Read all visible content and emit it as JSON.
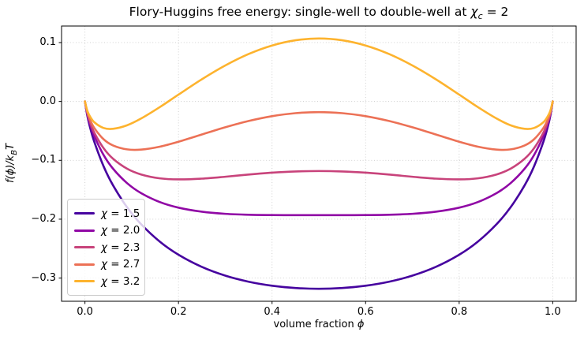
{
  "chart_data": {
    "type": "line",
    "title_parts": {
      "prefix": "Flory-Huggins free energy: single-well to double-well at ",
      "chi": "χ",
      "chi_sub": "c",
      "suffix": " = 2"
    },
    "xlabel_parts": {
      "text": "volume fraction ",
      "phi": "ϕ"
    },
    "ylabel_parts": {
      "pre": "f(ϕ)/k",
      "sub": "B",
      "post": "T"
    },
    "legend": {
      "symbol": "χ",
      "equals": " = ",
      "position": "lower left"
    },
    "grid": true,
    "grid_style": "dotted",
    "xlim": [
      -0.05,
      1.05
    ],
    "ylim": [
      -0.3394,
      0.1281
    ],
    "xticks": {
      "values": [
        0.0,
        0.2,
        0.4,
        0.6,
        0.8,
        1.0
      ],
      "labels": [
        "0.0",
        "0.2",
        "0.4",
        "0.6",
        "0.8",
        "1.0"
      ]
    },
    "yticks": {
      "values": [
        0.1,
        0.0,
        -0.1,
        -0.2,
        -0.3
      ],
      "labels": [
        "0.1",
        "0.0",
        "−0.1",
        "−0.2",
        "−0.3"
      ]
    },
    "x": [
      0,
      0.005,
      0.01,
      0.02,
      0.04,
      0.06,
      0.09,
      0.12,
      0.16,
      0.2,
      0.25,
      0.3,
      0.35,
      0.4,
      0.45,
      0.5,
      0.55,
      0.6,
      0.65,
      0.7,
      0.75,
      0.8,
      0.84,
      0.88,
      0.91,
      0.94,
      0.96,
      0.98,
      0.99,
      0.995,
      1.0
    ],
    "series": [
      {
        "chi": "1.5",
        "color": "#46039f",
        "values": [
          0,
          -0.024,
          -0.0412,
          -0.0686,
          -0.1104,
          -0.1424,
          -0.1797,
          -0.2085,
          -0.2381,
          -0.2604,
          -0.2811,
          -0.2959,
          -0.3062,
          -0.313,
          -0.3169,
          -0.3182,
          -0.3169,
          -0.313,
          -0.3062,
          -0.2959,
          -0.2811,
          -0.2604,
          -0.2381,
          -0.2085,
          -0.1797,
          -0.1424,
          -0.1104,
          -0.0686,
          -0.0412,
          -0.024,
          0
        ]
      },
      {
        "chi": "2.0",
        "color": "#9008a5",
        "values": [
          0,
          -0.0215,
          -0.0362,
          -0.0588,
          -0.0912,
          -0.1142,
          -0.1387,
          -0.1557,
          -0.1709,
          -0.1804,
          -0.1873,
          -0.1909,
          -0.1925,
          -0.193,
          -0.1931,
          -0.1932,
          -0.1931,
          -0.193,
          -0.1925,
          -0.1909,
          -0.1873,
          -0.1804,
          -0.1709,
          -0.1557,
          -0.1387,
          -0.1142,
          -0.0912,
          -0.0588,
          -0.0362,
          -0.0215,
          0
        ]
      },
      {
        "chi": "2.3",
        "color": "#c8437b",
        "values": [
          0,
          -0.02,
          -0.0332,
          -0.053,
          -0.0796,
          -0.0973,
          -0.1142,
          -0.124,
          -0.1306,
          -0.1324,
          -0.1311,
          -0.1279,
          -0.1242,
          -0.121,
          -0.1189,
          -0.1182,
          -0.1189,
          -0.121,
          -0.1242,
          -0.1279,
          -0.1311,
          -0.1324,
          -0.1306,
          -0.124,
          -0.1142,
          -0.0973,
          -0.0796,
          -0.053,
          -0.0332,
          -0.02,
          0
        ]
      },
      {
        "chi": "2.7",
        "color": "#ec7156",
        "values": [
          0,
          -0.0181,
          -0.0293,
          -0.0451,
          -0.0643,
          -0.0747,
          -0.0814,
          -0.0818,
          -0.0768,
          -0.0684,
          -0.0561,
          -0.0439,
          -0.0332,
          -0.025,
          -0.0199,
          -0.0181,
          -0.0199,
          -0.025,
          -0.0332,
          -0.0439,
          -0.0561,
          -0.0684,
          -0.0768,
          -0.0818,
          -0.0814,
          -0.0747,
          -0.0643,
          -0.0451,
          -0.0293,
          -0.0181,
          0
        ]
      },
      {
        "chi": "3.2",
        "color": "#fdb32e",
        "values": [
          0,
          -0.0156,
          -0.0243,
          -0.0353,
          -0.0451,
          -0.0465,
          -0.0405,
          -0.029,
          -0.0096,
          0.0116,
          0.0377,
          0.0611,
          0.0806,
          0.095,
          0.1039,
          0.1069,
          0.1039,
          0.095,
          0.0806,
          0.0611,
          0.0377,
          0.0116,
          -0.0096,
          -0.029,
          -0.0405,
          -0.0465,
          -0.0451,
          -0.0353,
          -0.0243,
          -0.0156,
          0
        ]
      }
    ]
  }
}
